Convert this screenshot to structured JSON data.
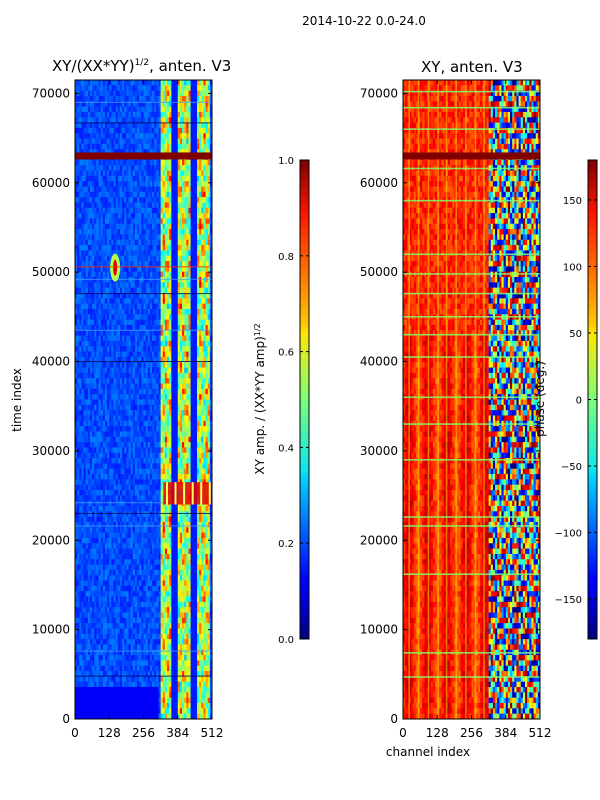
{
  "figure": {
    "suptitle": "2014-10-22 0.0-24.0"
  },
  "chart_data": [
    {
      "type": "heatmap",
      "title_main": "XY/(XX*YY)",
      "title_exp": "1/2",
      "title_suffix": ", anten. V3",
      "xlabel": "",
      "ylabel": "time index",
      "x_ticks": [
        0,
        128,
        256,
        384,
        512
      ],
      "y_ticks": [
        0,
        10000,
        20000,
        30000,
        40000,
        50000,
        60000,
        70000
      ],
      "xlim": [
        0,
        512
      ],
      "ylim": [
        0,
        71500
      ],
      "colormap": "jet",
      "colorbar": {
        "label_main": "XY amp. / (XX*YY amp)",
        "label_exp": "1/2",
        "range": [
          0.0,
          1.0
        ],
        "ticks": [
          "0.0",
          "0.2",
          "0.4",
          "0.6",
          "0.8",
          "1.0"
        ],
        "tick_values": [
          0.0,
          0.2,
          0.4,
          0.6,
          0.8,
          1.0
        ]
      },
      "features": [
        {
          "name": "strong band",
          "time_index": 63000,
          "value": 1.0
        },
        {
          "name": "spike",
          "time_index": 50500,
          "channel": 150,
          "value": 0.9
        },
        {
          "name": "high block",
          "time_range": [
            24000,
            26500
          ],
          "channel_range": [
            330,
            512
          ],
          "value": 0.9
        }
      ]
    },
    {
      "type": "heatmap",
      "title": "XY, anten. V3",
      "xlabel": "channel index",
      "ylabel": "",
      "x_ticks": [
        0,
        128,
        256,
        384,
        512
      ],
      "y_ticks": [
        0,
        10000,
        20000,
        30000,
        40000,
        50000,
        60000,
        70000
      ],
      "xlim": [
        0,
        512
      ],
      "ylim": [
        0,
        71500
      ],
      "colormap": "jet",
      "colorbar": {
        "label": "phase (deg.)",
        "range": [
          -180,
          180
        ],
        "ticks": [
          "−150",
          "−100",
          "−50",
          "0",
          "50",
          "100",
          "150"
        ],
        "tick_values": [
          -150,
          -100,
          -50,
          0,
          50,
          100,
          150
        ]
      },
      "features": [
        {
          "name": "dark band",
          "time_index": 63000,
          "value": 180
        },
        {
          "name": "phase-wrapping region",
          "channel_range": [
            320,
            512
          ]
        }
      ]
    }
  ]
}
